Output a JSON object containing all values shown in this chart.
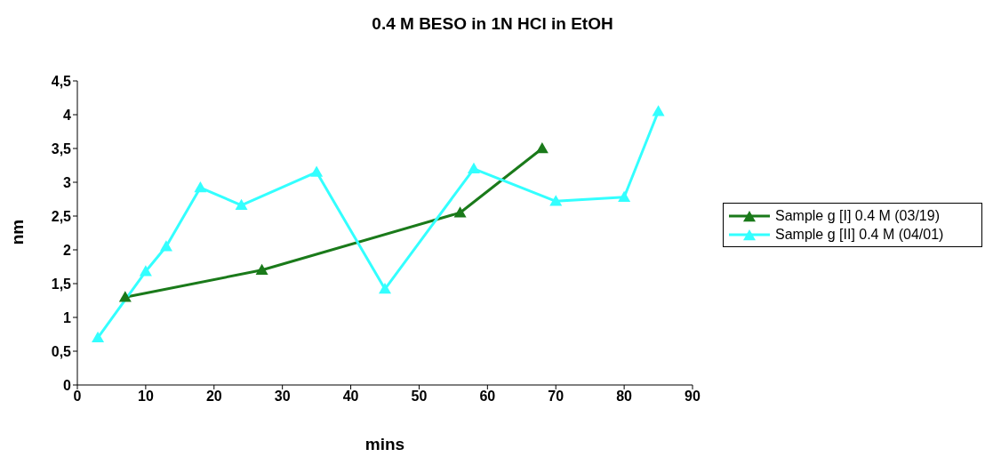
{
  "chart_data": {
    "type": "line",
    "title": "0.4 M BESO in 1N HCl in EtOH",
    "xlabel": "mins",
    "ylabel": "nm",
    "series": [
      {
        "name": "Sample g [I] 0.4 M (03/19)",
        "color": "#1a7a1a",
        "x": [
          7,
          27,
          56,
          68
        ],
        "values": [
          1.3,
          1.7,
          2.55,
          3.5
        ]
      },
      {
        "name": "Sample g [II] 0.4 M (04/01)",
        "color": "#33ffff",
        "x": [
          3,
          10,
          13,
          18,
          24,
          35,
          45,
          58,
          70,
          80,
          85
        ],
        "values": [
          0.7,
          1.68,
          2.05,
          2.92,
          2.66,
          3.15,
          1.42,
          3.2,
          2.72,
          2.78,
          4.05
        ]
      }
    ],
    "xlim": [
      0,
      90
    ],
    "xticks": [
      0,
      10,
      20,
      30,
      40,
      50,
      60,
      70,
      80,
      90
    ],
    "ylim": [
      0,
      4.5
    ],
    "yticks": [
      0,
      {
        "value": 0.5,
        "label": "0,5"
      },
      1,
      {
        "value": 1.5,
        "label": "1,5"
      },
      2,
      {
        "value": 2.5,
        "label": "2,5"
      },
      3,
      {
        "value": 3.5,
        "label": "3,5"
      },
      4,
      {
        "value": 4.5,
        "label": "4,5"
      }
    ],
    "grid": false,
    "legend": "right",
    "marker": "triangle",
    "line_style": "solid"
  }
}
